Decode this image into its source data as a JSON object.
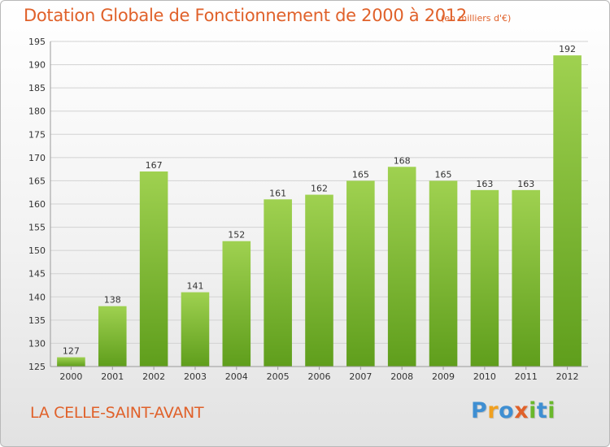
{
  "title": "Dotation Globale de Fonctionnement de 2000 à 2012",
  "subtitle": "(en milliers d'€)",
  "commune": "LA CELLE-SAINT-AVANT",
  "logo": {
    "text": "Proxiti",
    "letters": [
      {
        "ch": "P",
        "color": "#3f8fd2"
      },
      {
        "ch": "r",
        "color": "#f0a020"
      },
      {
        "ch": "o",
        "color": "#3f8fd2"
      },
      {
        "ch": "x",
        "color": "#e0612a"
      },
      {
        "ch": "i",
        "color": "#6ab82c"
      },
      {
        "ch": "t",
        "color": "#3f8fd2"
      },
      {
        "ch": "i",
        "color": "#6ab82c"
      }
    ]
  },
  "colors": {
    "accent": "#e0612a",
    "bar_top": "#9fd150",
    "bar_bottom": "#5f9e1c",
    "grid": "#d2d2d2",
    "axis": "#9a9a9a"
  },
  "chart_data": {
    "type": "bar",
    "categories": [
      "2000",
      "2001",
      "2002",
      "2003",
      "2004",
      "2005",
      "2006",
      "2007",
      "2008",
      "2009",
      "2010",
      "2011",
      "2012"
    ],
    "values": [
      127,
      138,
      167,
      141,
      152,
      161,
      162,
      165,
      168,
      165,
      163,
      163,
      192
    ],
    "ylim": [
      125,
      195
    ],
    "yticks": [
      125,
      130,
      135,
      140,
      145,
      150,
      155,
      160,
      165,
      170,
      175,
      180,
      185,
      190,
      195
    ],
    "grid": true,
    "xlabel": "",
    "ylabel": ""
  }
}
